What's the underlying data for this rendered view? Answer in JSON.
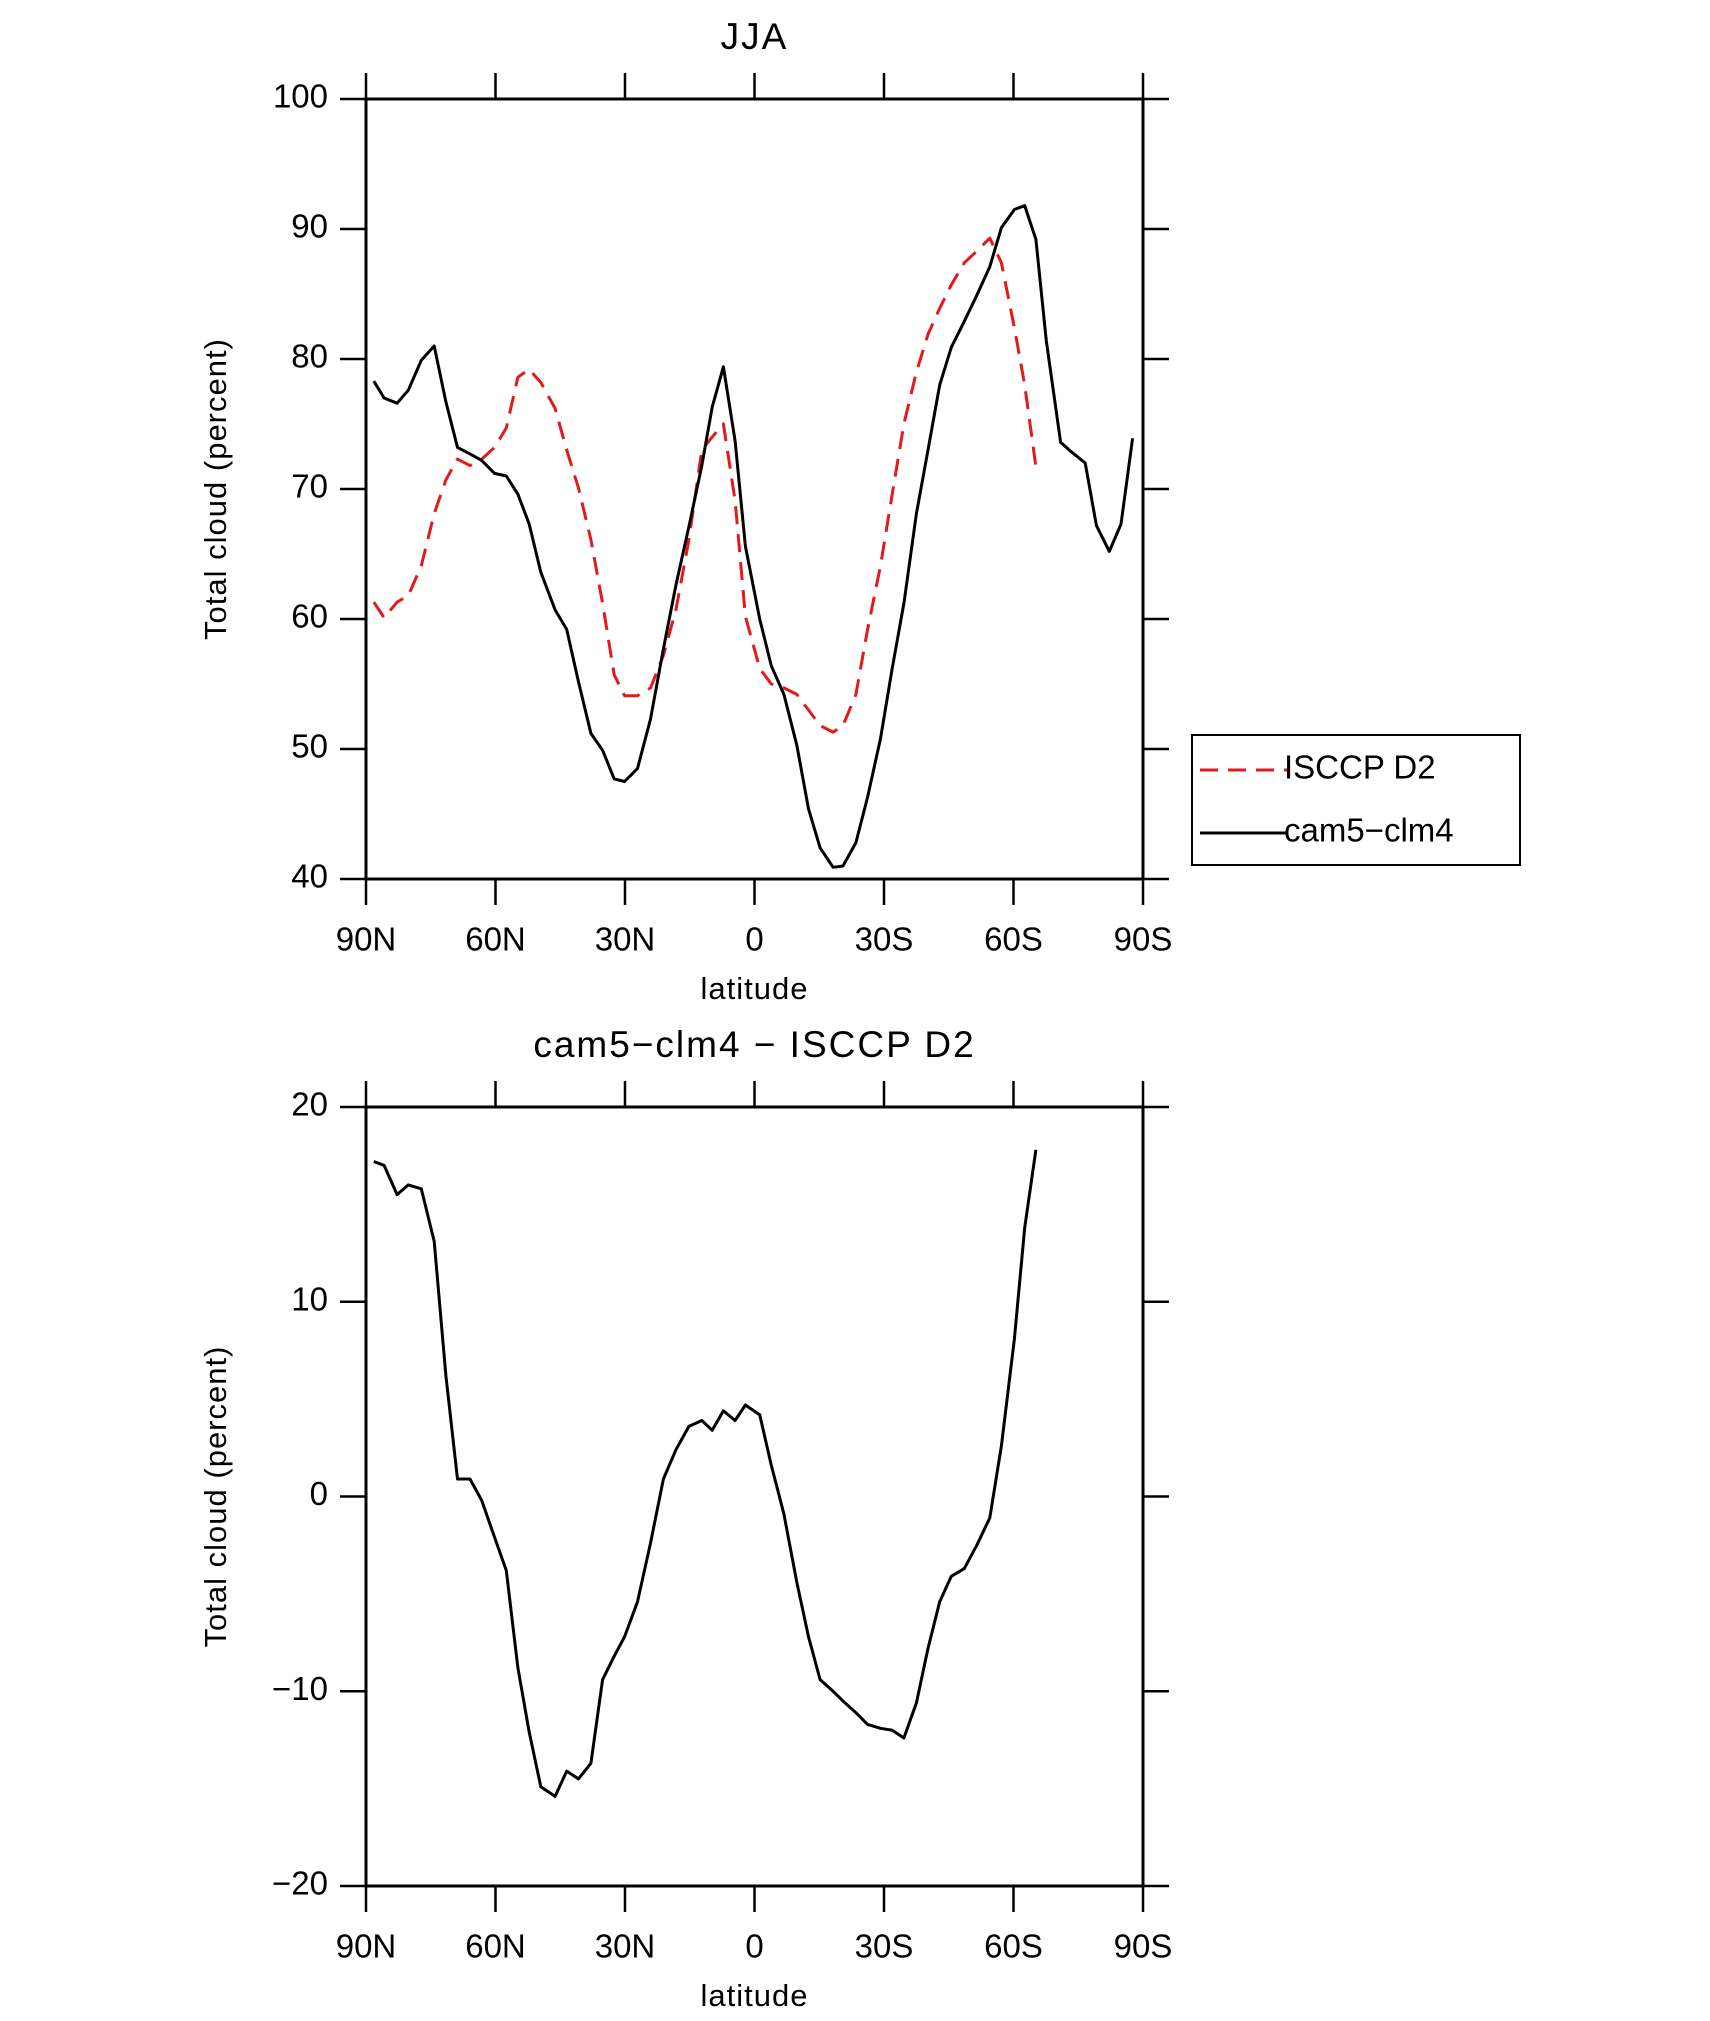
{
  "chart_data": [
    {
      "type": "line",
      "title": "JJA",
      "x_label": "latitude",
      "y_label": "Total cloud (percent)",
      "x": [
        88.2,
        85.8,
        82.8,
        80.2,
        77.2,
        74.2,
        71.5,
        68.8,
        65.9,
        63.2,
        60.2,
        57.5,
        54.8,
        52.2,
        49.5,
        46.2,
        43.5,
        40.8,
        37.9,
        35.2,
        32.5,
        30.1,
        27.1,
        24.1,
        21.1,
        18.2,
        15.2,
        12.2,
        9.8,
        7.2,
        4.5,
        2.1,
        -1.2,
        -3.9,
        -6.8,
        -9.8,
        -12.5,
        -15.2,
        -18.2,
        -20.5,
        -23.5,
        -26.2,
        -29.2,
        -31.9,
        -34.6,
        -37.5,
        -40.2,
        -42.9,
        -45.6,
        -48.6,
        -51.5,
        -54.5,
        -57.2,
        -60.2,
        -62.6,
        -65.2,
        -67.6,
        -70.9,
        -73.6,
        -76.6,
        -79.2,
        -82.2,
        -84.9,
        -87.6
      ],
      "series": [
        {
          "name": "ISCCP D2",
          "color": "#e31a1c",
          "dashed": true,
          "values": [
            61.3,
            60.1,
            61.3,
            61.8,
            64.1,
            68.1,
            70.7,
            72.3,
            71.8,
            72.3,
            73.2,
            74.7,
            78.6,
            79.2,
            78.2,
            76.2,
            73.0,
            70.1,
            66.1,
            61.2,
            55.7,
            54.1,
            54.1,
            54.7,
            57.2,
            60.7,
            66.1,
            73.0,
            74.0,
            75.0,
            69.1,
            60.2,
            56.2,
            55.0,
            54.7,
            54.2,
            53.0,
            51.8,
            51.3,
            51.8,
            54.2,
            59.2,
            64.1,
            69.6,
            75.0,
            79.0,
            81.9,
            83.9,
            85.7,
            87.4,
            88.3,
            89.3,
            87.4,
            82.4,
            78.0,
            71.7,
            null,
            null,
            null,
            null,
            null,
            null,
            null,
            null
          ]
        },
        {
          "name": "cam5−clm4",
          "color": "#000000",
          "dashed": false,
          "values": [
            78.3,
            77.0,
            76.6,
            77.6,
            79.9,
            81.0,
            76.7,
            73.2,
            72.7,
            72.2,
            71.2,
            71.0,
            69.6,
            67.3,
            63.6,
            60.7,
            59.2,
            55.2,
            51.2,
            49.9,
            47.7,
            47.5,
            48.5,
            52.3,
            57.7,
            62.6,
            67.1,
            71.8,
            76.3,
            79.4,
            73.7,
            65.6,
            60.0,
            56.4,
            54.2,
            50.3,
            45.4,
            42.4,
            40.9,
            41.0,
            42.8,
            46.3,
            50.8,
            56.2,
            61.2,
            68.1,
            73.0,
            78.0,
            80.9,
            82.9,
            84.9,
            87.1,
            90.1,
            91.5,
            91.8,
            89.2,
            81.4,
            73.6,
            72.8,
            72.0,
            67.2,
            65.2,
            67.3,
            73.9
          ]
        }
      ],
      "xlim": [
        90,
        -90
      ],
      "xticks": [
        {
          "value": 90,
          "label": "90N"
        },
        {
          "value": 60,
          "label": "60N"
        },
        {
          "value": 30,
          "label": "30N"
        },
        0,
        {
          "value": -30,
          "label": "30S"
        },
        {
          "value": -60,
          "label": "60S"
        },
        {
          "value": -90,
          "label": "90S"
        }
      ],
      "ylim": [
        40,
        100
      ],
      "yticks": [
        40,
        50,
        60,
        70,
        80,
        90,
        100
      ],
      "legend": "outside-right"
    },
    {
      "type": "line",
      "title": "cam5−clm4 − ISCCP D2",
      "x_label": "latitude",
      "y_label": "Total cloud (percent)",
      "x": [
        88.2,
        85.8,
        82.8,
        80.2,
        77.2,
        74.2,
        71.5,
        68.8,
        65.9,
        63.2,
        60.2,
        57.5,
        54.8,
        52.2,
        49.5,
        46.2,
        43.5,
        40.8,
        37.9,
        35.2,
        32.5,
        30.1,
        27.1,
        24.1,
        21.1,
        18.2,
        15.2,
        12.2,
        9.8,
        7.2,
        4.5,
        2.1,
        -1.2,
        -3.9,
        -6.8,
        -9.8,
        -12.5,
        -15.2,
        -18.2,
        -20.5,
        -23.5,
        -26.2,
        -29.2,
        -31.9,
        -34.6,
        -37.5,
        -40.2,
        -42.9,
        -45.6,
        -48.6,
        -51.5,
        -54.5,
        -57.2,
        -60.2,
        -62.6,
        -65.2
      ],
      "series": [
        {
          "color": "#000000",
          "dashed": false,
          "values": [
            17.2,
            17.0,
            15.5,
            16.0,
            15.8,
            13.1,
            6.2,
            0.9,
            0.9,
            -0.2,
            -2.1,
            -3.8,
            -8.8,
            -12.1,
            -14.9,
            -15.4,
            -14.1,
            -14.5,
            -13.7,
            -9.4,
            -8.2,
            -7.2,
            -5.4,
            -2.4,
            0.9,
            2.4,
            3.6,
            3.9,
            3.4,
            4.4,
            3.9,
            4.7,
            4.2,
            1.6,
            -0.9,
            -4.4,
            -7.2,
            -9.4,
            -10.0,
            -10.5,
            -11.1,
            -11.7,
            -11.9,
            -12.0,
            -12.4,
            -10.6,
            -7.8,
            -5.4,
            -4.1,
            -3.7,
            -2.5,
            -1.1,
            2.6,
            8.1,
            13.8,
            17.8
          ]
        }
      ],
      "xlim": [
        90,
        -90
      ],
      "xticks": [
        {
          "value": 90,
          "label": "90N"
        },
        {
          "value": 60,
          "label": "60N"
        },
        {
          "value": 30,
          "label": "30N"
        },
        0,
        {
          "value": -30,
          "label": "30S"
        },
        {
          "value": -60,
          "label": "60S"
        },
        {
          "value": -90,
          "label": "90S"
        }
      ],
      "ylim": [
        -20,
        20
      ],
      "yticks": [
        {
          "value": -20,
          "label": "−20"
        },
        {
          "value": -10,
          "label": "−10"
        },
        0,
        10,
        20
      ]
    }
  ]
}
